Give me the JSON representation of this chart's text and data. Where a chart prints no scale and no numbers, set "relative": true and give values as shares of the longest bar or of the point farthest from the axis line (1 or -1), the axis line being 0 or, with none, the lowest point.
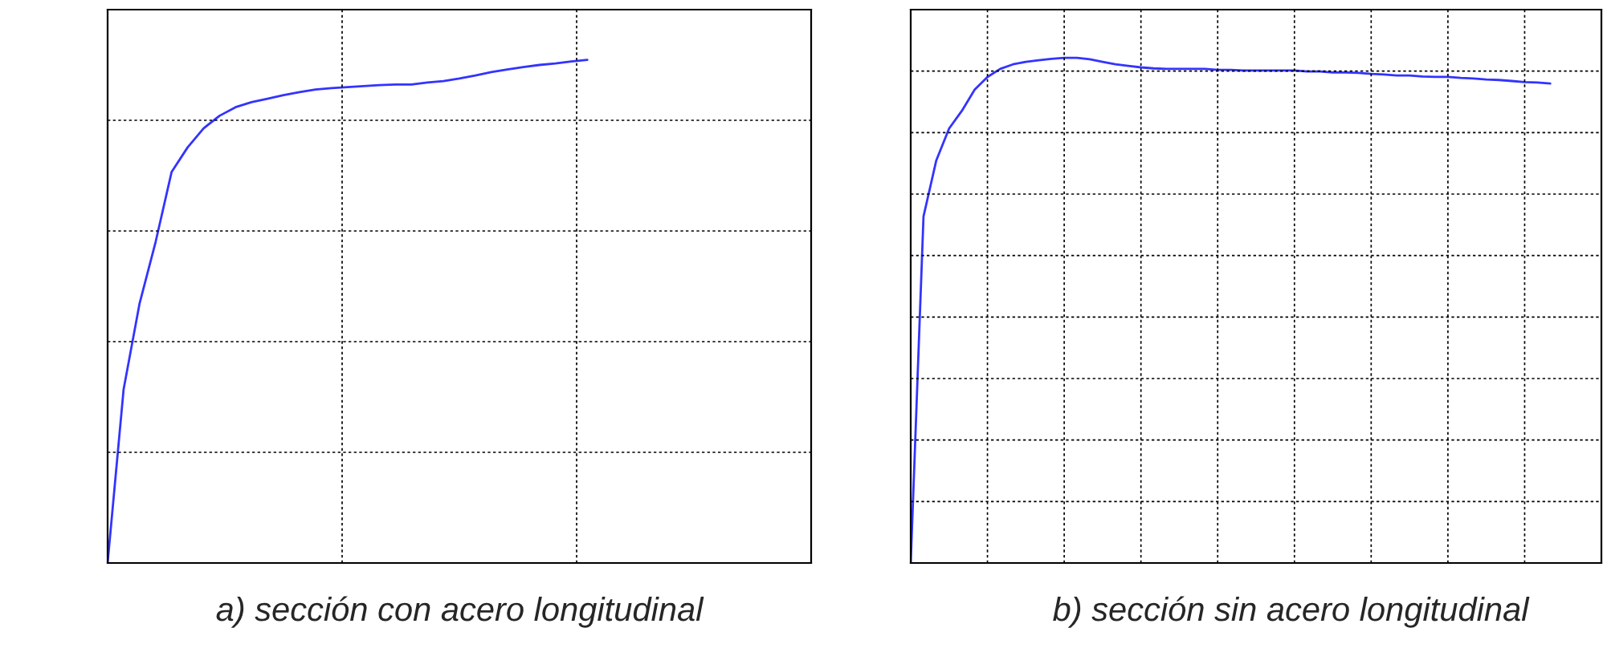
{
  "chart_data": [
    {
      "type": "line",
      "relative": true,
      "grid": true,
      "categories": [
        null,
        null,
        null,
        null,
        null,
        null,
        null,
        null,
        null,
        null,
        null,
        null,
        null,
        null,
        null,
        null,
        null,
        null,
        null,
        null,
        null,
        null,
        null,
        null,
        null,
        null,
        null,
        null,
        null,
        null,
        null,
        null,
        null,
        null,
        null,
        null,
        null,
        null,
        null,
        null,
        null,
        null,
        null,
        null,
        null
      ],
      "series": [
        {
          "color": "#3333ff",
          "values": [
            0,
            0.345,
            0.516,
            0.638,
            0.777,
            0.826,
            0.864,
            0.889,
            0.906,
            0.916,
            0.923,
            0.93,
            0.936,
            0.941,
            0.944,
            0.946,
            0.948,
            0.95,
            0.951,
            0.951,
            0.955,
            0.958,
            0.963,
            0.969,
            0.976,
            0.981,
            0.986,
            0.99,
            0.993,
            0.997,
            1,
            null,
            null,
            null,
            null,
            null,
            null,
            null,
            null,
            null,
            null,
            null,
            null,
            null,
            null
          ]
        }
      ],
      "annotations": [
        "a) sección con acero longitudinal"
      ]
    },
    {
      "type": "line",
      "relative": true,
      "grid": true,
      "categories": [
        null,
        null,
        null,
        null,
        null,
        null,
        null,
        null,
        null,
        null,
        null,
        null,
        null,
        null,
        null,
        null,
        null,
        null,
        null,
        null,
        null,
        null,
        null,
        null,
        null,
        null,
        null,
        null,
        null,
        null,
        null,
        null,
        null,
        null,
        null,
        null,
        null,
        null,
        null,
        null,
        null,
        null,
        null,
        null,
        null,
        null,
        null,
        null,
        null,
        null,
        null,
        null,
        null,
        null,
        null
      ],
      "series": [
        {
          "color": "#3333ff",
          "values": [
            0,
            0.686,
            0.797,
            0.86,
            0.895,
            0.937,
            0.962,
            0.978,
            0.987,
            0.992,
            0.995,
            0.998,
            1,
            1,
            0.997,
            0.992,
            0.987,
            0.984,
            0.981,
            0.979,
            0.978,
            0.978,
            0.978,
            0.978,
            0.976,
            0.976,
            0.975,
            0.975,
            0.975,
            0.975,
            0.975,
            0.973,
            0.973,
            0.971,
            0.971,
            0.97,
            0.968,
            0.967,
            0.965,
            0.965,
            0.963,
            0.962,
            0.962,
            0.96,
            0.959,
            0.957,
            0.956,
            0.954,
            0.952,
            0.951,
            0.949,
            null,
            null,
            null,
            null
          ]
        }
      ],
      "annotations": [
        "b) sección sin acero longitudinal"
      ]
    }
  ]
}
